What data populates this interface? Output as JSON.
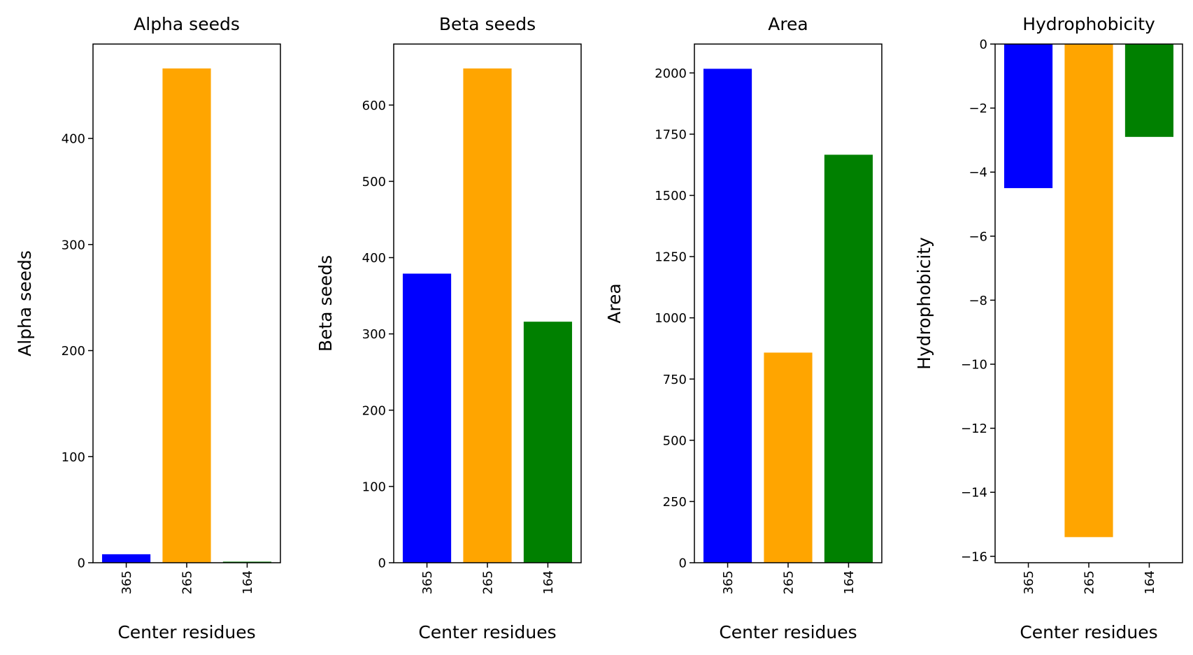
{
  "chart_data": [
    {
      "type": "bar",
      "title": "Alpha seeds",
      "xlabel": "Center residues",
      "ylabel": "Alpha seeds",
      "categories": [
        "365",
        "265",
        "164"
      ],
      "values": [
        8,
        466,
        1
      ],
      "colors": [
        "#0000ff",
        "#ffa500",
        "#008000"
      ],
      "ylim": [
        0,
        489
      ],
      "yticks": [
        0,
        100,
        200,
        300,
        400
      ],
      "ytick_labels": [
        "0",
        "100",
        "200",
        "300",
        "400"
      ],
      "xtick_rotation": "vertical"
    },
    {
      "type": "bar",
      "title": "Beta seeds",
      "xlabel": "Center residues",
      "ylabel": "Beta seeds",
      "categories": [
        "365",
        "265",
        "164"
      ],
      "values": [
        379,
        648,
        316
      ],
      "colors": [
        "#0000ff",
        "#ffa500",
        "#008000"
      ],
      "ylim": [
        0,
        680
      ],
      "yticks": [
        0,
        100,
        200,
        300,
        400,
        500,
        600
      ],
      "ytick_labels": [
        "0",
        "100",
        "200",
        "300",
        "400",
        "500",
        "600"
      ],
      "xtick_rotation": "vertical"
    },
    {
      "type": "bar",
      "title": "Area",
      "xlabel": "Center residues",
      "ylabel": "Area",
      "categories": [
        "365",
        "265",
        "164"
      ],
      "values": [
        2017,
        858,
        1666
      ],
      "colors": [
        "#0000ff",
        "#ffa500",
        "#008000"
      ],
      "ylim": [
        0,
        2118
      ],
      "yticks": [
        0,
        250,
        500,
        750,
        1000,
        1250,
        1500,
        1750,
        2000
      ],
      "ytick_labels": [
        "0",
        "250",
        "500",
        "750",
        "1000",
        "1250",
        "1500",
        "1750",
        "2000"
      ],
      "xtick_rotation": "vertical"
    },
    {
      "type": "bar",
      "title": "Hydrophobicity",
      "xlabel": "Center residues",
      "ylabel": "Hydrophobicity",
      "categories": [
        "365",
        "265",
        "164"
      ],
      "values": [
        -4.5,
        -15.4,
        -2.9
      ],
      "colors": [
        "#0000ff",
        "#ffa500",
        "#008000"
      ],
      "ylim": [
        -16.2,
        0
      ],
      "yticks": [
        0,
        -2,
        -4,
        -6,
        -8,
        -10,
        -12,
        -14,
        -16
      ],
      "ytick_labels": [
        "0",
        "−2",
        "−4",
        "−6",
        "−8",
        "−10",
        "−12",
        "−14",
        "−16"
      ],
      "xtick_rotation": "vertical"
    }
  ]
}
